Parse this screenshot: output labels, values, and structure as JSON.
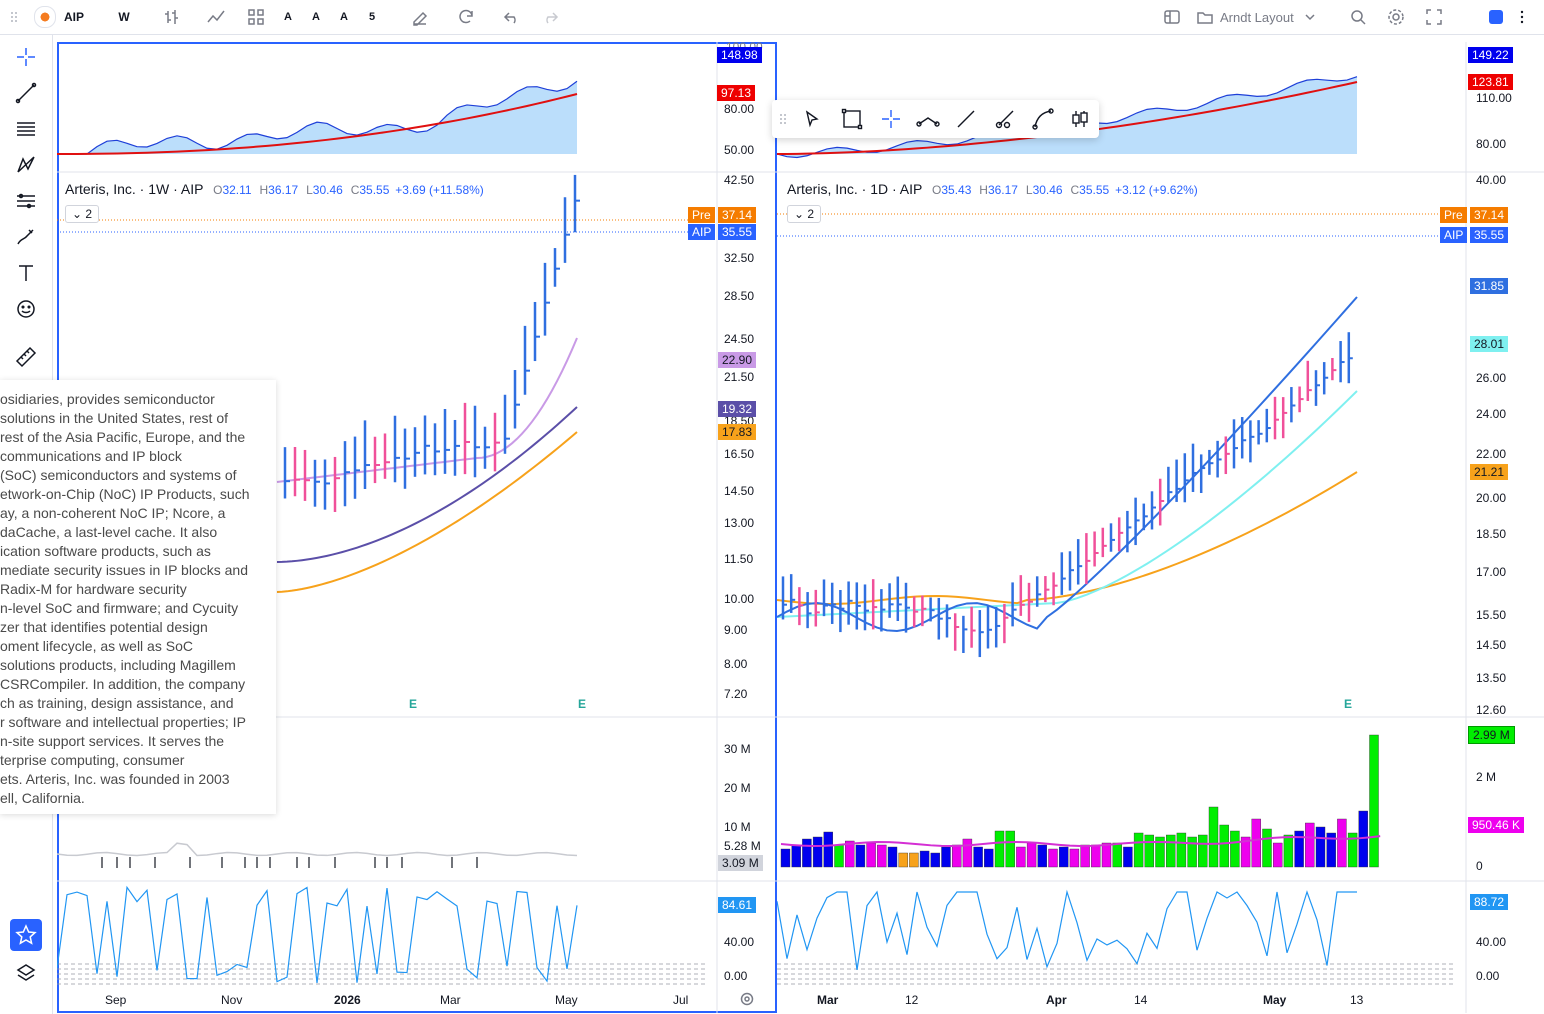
{
  "topbar": {
    "symbol": "AIP",
    "interval": "W",
    "btn_a1": "A",
    "btn_a2": "A",
    "btn_a3": "A",
    "btn_5": "5",
    "layout_name": "Arndt Layout"
  },
  "left_chart": {
    "title": "Arteris, Inc. · 1W · AIP",
    "o_label": "O",
    "o": "32.11",
    "h_label": "H",
    "h": "36.17",
    "l_label": "L",
    "l": "30.46",
    "c_label": "C",
    "c": "35.55",
    "change": "+3.69 (+11.58%)",
    "collapse_count": "2",
    "top_axis": [
      "100.00",
      "80.00",
      "50.00"
    ],
    "price_axis": [
      "42.50",
      "32.50",
      "28.50",
      "24.50",
      "21.50",
      "18.50",
      "16.50",
      "14.50",
      "13.00",
      "11.50",
      "10.00",
      "9.00",
      "8.00",
      "7.20"
    ],
    "vol_axis": [
      "30 M",
      "20 M",
      "10 M"
    ],
    "osc_axis": [
      "40.00",
      "0.00"
    ],
    "tags": {
      "rs_blue": "148.98",
      "rs_red": "97.13",
      "pre_label": "Pre",
      "pre": "37.14",
      "aip_label": "AIP",
      "aip": "35.55",
      "ma_purple_light": "22.90",
      "ma_purple_dark": "19.32",
      "ma_orange": "17.83",
      "vol_5": "5.28 M",
      "vol_3": "3.09 M",
      "osc": "84.61"
    },
    "x_labels": [
      "Sep",
      "Nov",
      "2026",
      "Mar",
      "May",
      "Jul"
    ],
    "earnings": [
      "E",
      "E"
    ]
  },
  "right_chart": {
    "title": "Arteris, Inc. · 1D · AIP",
    "o_label": "O",
    "o": "35.43",
    "h_label": "H",
    "h": "36.17",
    "l_label": "L",
    "l": "30.46",
    "c_label": "C",
    "c": "35.55",
    "change": "+3.12 (+9.62%)",
    "collapse_count": "2",
    "top_axis": [
      "110.00",
      "80.00"
    ],
    "price_axis": [
      "40.00",
      "26.00",
      "24.00",
      "22.00",
      "20.00",
      "18.50",
      "17.00",
      "15.50",
      "14.50",
      "13.50",
      "12.60"
    ],
    "vol_axis": [
      "2 M",
      "0"
    ],
    "osc_axis": [
      "40.00",
      "0.00"
    ],
    "tags": {
      "rs_blue": "149.22",
      "rs_red": "123.81",
      "pre_label": "Pre",
      "pre": "37.14",
      "aip_label": "AIP",
      "aip": "35.55",
      "ma_blue": "31.85",
      "ma_cyan": "28.01",
      "ma_orange": "21.21",
      "vol": "2.99 M",
      "vol_ma": "950.46 K",
      "osc": "88.72"
    },
    "x_labels": [
      "Mar",
      "12",
      "Apr",
      "14",
      "May",
      "13"
    ],
    "earnings": [
      "E"
    ]
  },
  "tooltip": {
    "lines": [
      "osidiaries, provides semiconductor",
      "solutions in the United States, rest of",
      "rest of the Asia Pacific, Europe, and the",
      " communications and IP block",
      " (SoC) semiconductors and systems of",
      "etwork-on-Chip (NoC) IP Products, such",
      "ay, a non-coherent NoC IP; Ncore, a",
      "daCache, a last-level cache. It also",
      "ication software products, such as",
      "mediate security issues in IP blocks and",
      "Radix-M for hardware security",
      "n-level SoC and firmware; and Cycuity",
      "zer that identifies potential design",
      "oment lifecycle, as well as SoC",
      "solutions products, including Magillem",
      "CSRCompiler. In addition, the company",
      "ch as training, design assistance, and",
      "r software and intellectual properties; IP",
      "n-site support services. It serves the",
      "terprise computing, consumer",
      "ets. Arteris, Inc. was founded in 2003",
      "ell, California."
    ]
  },
  "colors": {
    "accent": "#2962ff",
    "bar_up": "#2f6fe0",
    "bar_down": "#f0509a",
    "ma_orange": "#f7a21b",
    "ma_cyan": "#7ff0f0",
    "ma_purple": "#5b4fa8",
    "ma_lilac": "#c99ae6",
    "vol_green": "#00ee00",
    "vol_blue": "#0000ee",
    "vol_magenta": "#ee00ee"
  }
}
